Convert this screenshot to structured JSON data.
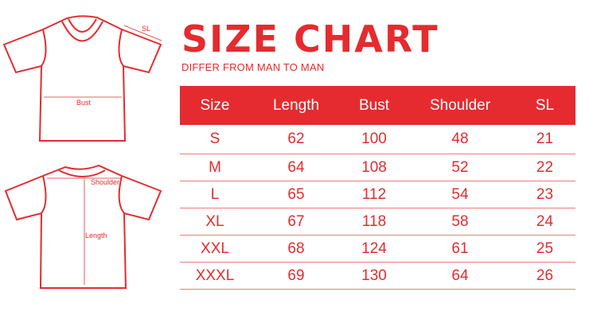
{
  "title": "SIZE CHART",
  "subtitle": "DIFFER FROM MAN TO MAN",
  "diagram_labels": {
    "sl": "SL",
    "bust": "Bust",
    "shoulder": "Shoulder",
    "length": "Length"
  },
  "accent_color": "#e52b2f",
  "table": {
    "headers": [
      "Size",
      "Length",
      "Bust",
      "Shoulder",
      "SL"
    ],
    "rows": [
      [
        "S",
        "62",
        "100",
        "48",
        "21"
      ],
      [
        "M",
        "64",
        "108",
        "52",
        "22"
      ],
      [
        "L",
        "65",
        "112",
        "54",
        "23"
      ],
      [
        "XL",
        "67",
        "118",
        "58",
        "24"
      ],
      [
        "XXL",
        "68",
        "124",
        "61",
        "25"
      ],
      [
        "XXXL",
        "69",
        "130",
        "64",
        "26"
      ]
    ]
  }
}
